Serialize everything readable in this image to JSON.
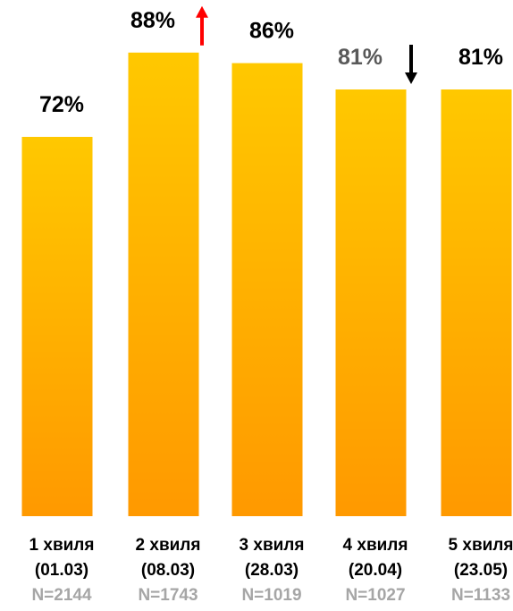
{
  "chart_data": {
    "type": "bar",
    "categories": [
      "1 хвиля",
      "2 хвиля",
      "3 хвиля",
      "4 хвиля",
      "5 хвиля"
    ],
    "dates": [
      "(01.03)",
      "(08.03)",
      "(28.03)",
      "(20.04)",
      "(23.05)"
    ],
    "sample_sizes": [
      "N=2144",
      "N=1743",
      "N=1019",
      "N=1027",
      "N=1133"
    ],
    "values": [
      72,
      88,
      86,
      81,
      81
    ],
    "value_labels": [
      "72%",
      "88%",
      "86%",
      "81%",
      "81%"
    ],
    "ylim": [
      0,
      100
    ],
    "trend_arrows": [
      null,
      "up",
      null,
      "down",
      null
    ],
    "colors": {
      "bar_top": "#FFC800",
      "bar_bottom": "#FF9900",
      "label": "#000000",
      "label_muted": "#595959",
      "n_text": "#A6A6A6",
      "arrow_up": "#FF0000",
      "arrow_down": "#000000"
    }
  }
}
